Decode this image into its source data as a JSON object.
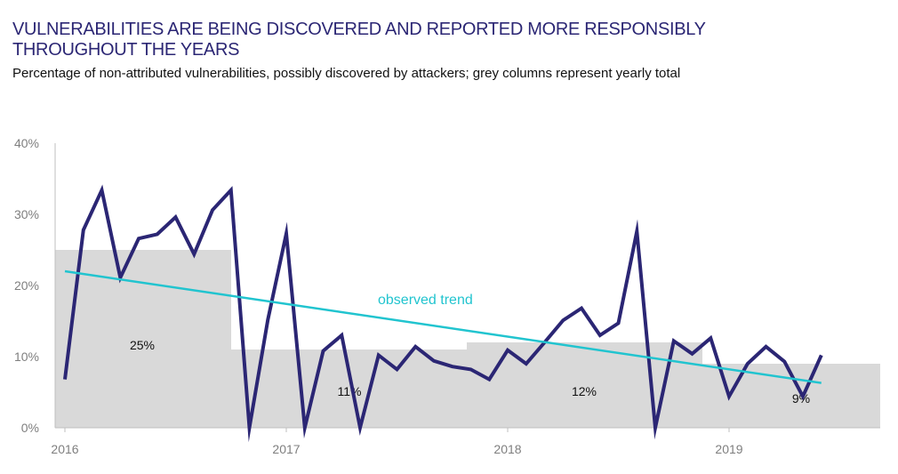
{
  "title_line1": "VULNERABILITIES ARE BEING DISCOVERED AND REPORTED MORE RESPONSIBLY",
  "title_line2": "THROUGHOUT THE YEARS",
  "subtitle": "Percentage of non-attributed vulnerabilities, possibly discovered by attackers; grey columns represent yearly total",
  "colors": {
    "line": "#2b2674",
    "trend": "#21c4cf",
    "columns": "#d9d9d9",
    "title": "#2b2674"
  },
  "chart_data": {
    "type": "line",
    "title": "VULNERABILITIES ARE BEING DISCOVERED AND REPORTED MORE RESPONSIBLY THROUGHOUT THE YEARS",
    "subtitle": "Percentage of non-attributed vulnerabilities, possibly discovered by attackers; grey columns represent yearly total",
    "xlabel": "",
    "ylabel": "",
    "ylim": [
      0,
      40
    ],
    "yticks": [
      "0%",
      "10%",
      "20%",
      "30%",
      "40%"
    ],
    "xticks": [
      "2016",
      "2017",
      "2018",
      "2019"
    ],
    "grid": false,
    "months": [
      "2016-01",
      "2016-02",
      "2016-03",
      "2016-04",
      "2016-05",
      "2016-06",
      "2016-07",
      "2016-08",
      "2016-09",
      "2016-10",
      "2016-11",
      "2016-12",
      "2017-01",
      "2017-02",
      "2017-03",
      "2017-04",
      "2017-05",
      "2017-06",
      "2017-07",
      "2017-08",
      "2017-09",
      "2017-10",
      "2017-11",
      "2017-12",
      "2018-01",
      "2018-02",
      "2018-03",
      "2018-04",
      "2018-05",
      "2018-06",
      "2018-07",
      "2018-08",
      "2018-09",
      "2018-10",
      "2018-11",
      "2018-12",
      "2019-01",
      "2019-02",
      "2019-03",
      "2019-04",
      "2019-05",
      "2019-06"
    ],
    "monthly_values": [
      6.8,
      27.8,
      33.4,
      21.1,
      26.6,
      27.2,
      29.6,
      24.4,
      30.6,
      33.4,
      0,
      15.2,
      27.3,
      0,
      10.8,
      13.0,
      0,
      10.2,
      8.2,
      11.4,
      9.4,
      8.6,
      8.2,
      6.8,
      10.9,
      9.0,
      12.0,
      15.1,
      16.8,
      13.0,
      14.7,
      27.6,
      0,
      12.2,
      10.4,
      12.6,
      4.4,
      9.0,
      11.4,
      9.3,
      4.4,
      10.2
    ],
    "yearly_totals": [
      {
        "year": "2016",
        "value": 25,
        "label": "25%"
      },
      {
        "year": "2017",
        "value": 11,
        "label": "11%"
      },
      {
        "year": "2018",
        "value": 12,
        "label": "12%"
      },
      {
        "year": "2019",
        "value": 9,
        "label": "9%"
      }
    ],
    "trend": {
      "label": "observed trend",
      "start": 22,
      "end": 6.3
    }
  }
}
